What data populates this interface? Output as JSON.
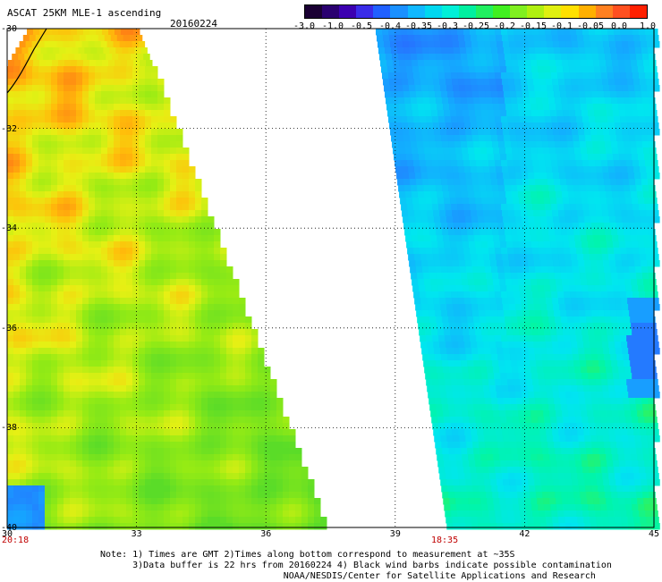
{
  "header": {
    "title": "ASCAT 25KM MLE-1 ascending",
    "date": "20160224"
  },
  "colorbar": {
    "labels": [
      "-3.0",
      "-1.0",
      "-0.5",
      "-0.4",
      "-0.35",
      "-0.3",
      "-0.25",
      "-0.2",
      "-0.15",
      "-0.1",
      "-0.05",
      "0.0",
      "1.0"
    ],
    "colors": [
      "#1a0033",
      "#2a0070",
      "#3c00b0",
      "#3a2ce8",
      "#2060ff",
      "#1a90ff",
      "#10b8ff",
      "#00d8f0",
      "#00f0d8",
      "#00f0a0",
      "#20f060",
      "#40f020",
      "#80f020",
      "#b0f010",
      "#e0f010",
      "#ffe000",
      "#ffb000",
      "#ff8020",
      "#ff5020",
      "#ff2000"
    ]
  },
  "map": {
    "lat_labels": [
      "-30",
      "-32",
      "-34",
      "-36",
      "-38",
      "-40"
    ],
    "lon_labels": [
      "30",
      "33",
      "36",
      "39",
      "42",
      "45"
    ],
    "pass_times": [
      "20:18",
      "18:35"
    ]
  },
  "notes": {
    "line1": "Note: 1) Times are GMT 2)Times along bottom correspond to measurement at ~35S",
    "line2": "      3)Data buffer is 22 hrs from 20160224 4) Black wind barbs indicate possible contamination",
    "line3": "                                  NOAA/NESDIS/Center for Satellite Applications and Research"
  }
}
